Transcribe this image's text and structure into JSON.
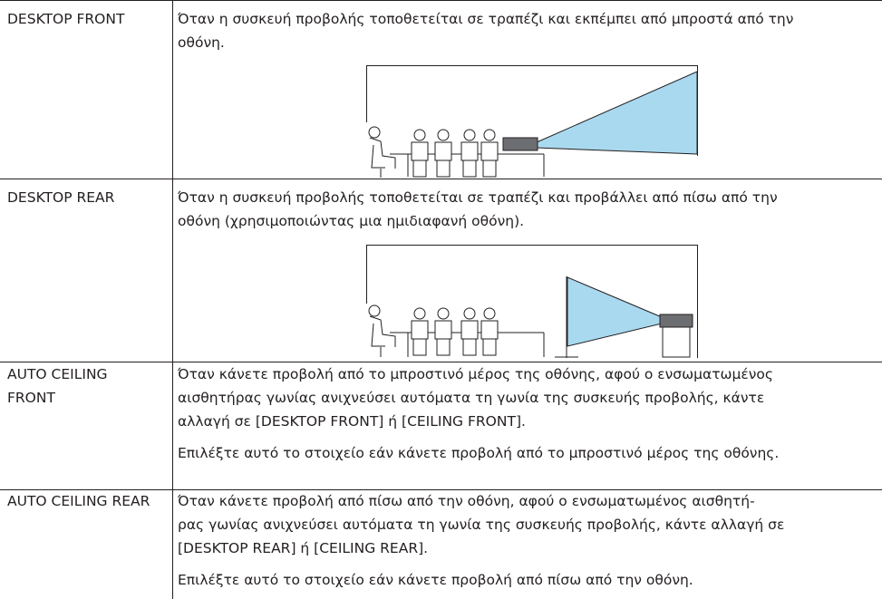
{
  "table": {
    "rows": [
      {
        "label": [
          "DESKTOP FRONT"
        ],
        "description": [
          [
            "Όταν η συσκευή προβολής τοποθετείται σε τραπέζι και εκπέμπει από μπροστά από την",
            "οθόνη."
          ]
        ]
      },
      {
        "label": [
          "DESKTOP REAR"
        ],
        "description": [
          [
            "Όταν η συσκευή προβολής τοποθετείται σε τραπέζι και προβάλλει από πίσω από την",
            "οθόνη (χρησιμοποιώντας μια ημιδιαφανή οθόνη)."
          ]
        ]
      },
      {
        "label": [
          "AUTO CEILING",
          "FRONT"
        ],
        "description": [
          [
            "Όταν κάνετε προβολή από το μπροστινό μέρος της οθόνης, αφού ο ενσωματωμένος",
            "αισθητήρας γωνίας ανιχνεύσει αυτόματα τη γωνία της συσκευής προβολής, κάντε",
            "αλλαγή σε [DESKTOP FRONT] ή [CEILING FRONT]."
          ],
          [
            "Επιλέξτε αυτό το στοιχείο εάν κάνετε προβολή από το μπροστινό μέρος της οθόνης."
          ]
        ]
      },
      {
        "label": [
          "AUTO CEILING REAR"
        ],
        "description": [
          [
            "Όταν κάνετε προβολή από πίσω από την οθόνη, αφού ο ενσωματωμένος αισθητή-",
            "ρας γωνίας ανιχνεύσει αυτόματα τη γωνία της συσκευής προβολής, κάντε αλλαγή σε",
            "[DESKTOP REAR] ή [CEILING REAR]."
          ],
          [
            "Επιλέξτε αυτό το στοιχείο εάν κάνετε προβολή από πίσω από την οθόνη."
          ]
        ]
      }
    ]
  }
}
